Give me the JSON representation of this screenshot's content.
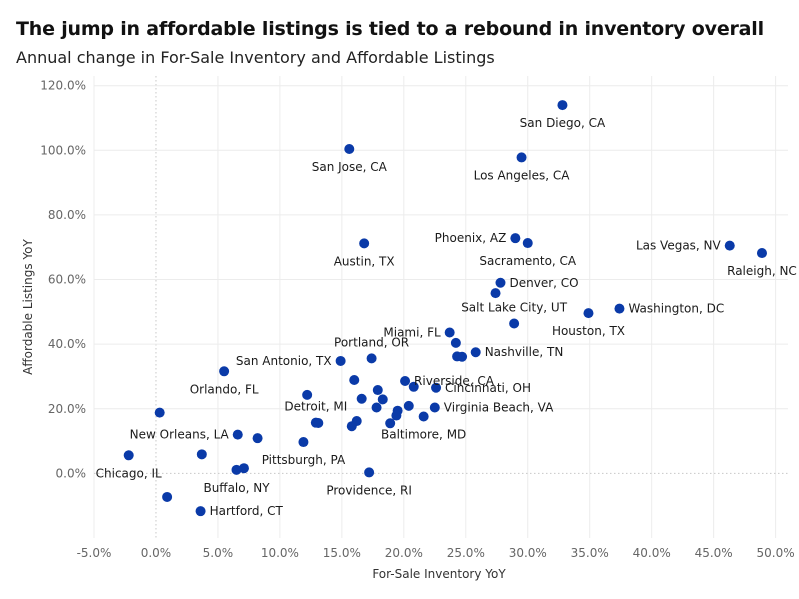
{
  "chart_data": {
    "type": "scatter",
    "title": "The jump in affordable listings is tied to a rebound in inventory overall",
    "subtitle": "Annual change in For-Sale Inventory and Affordable Listings",
    "xlabel": "For-Sale Inventory YoY",
    "ylabel": "Affordable Listings YoY",
    "xlim": [
      -5,
      51
    ],
    "ylim": [
      -20,
      123
    ],
    "xticks": [
      -5,
      0,
      5,
      10,
      15,
      20,
      25,
      30,
      35,
      40,
      45,
      50
    ],
    "yticks": [
      0,
      20,
      40,
      60,
      80,
      100,
      120
    ],
    "grid": true,
    "point_color": "#0a3aa8",
    "points": [
      {
        "x": 32.8,
        "y": 114.0,
        "label": "San Diego, CA",
        "pos": "below"
      },
      {
        "x": 15.6,
        "y": 100.4,
        "label": "San Jose, CA",
        "pos": "below"
      },
      {
        "x": 29.5,
        "y": 97.8,
        "label": "Los Angeles, CA",
        "pos": "below"
      },
      {
        "x": 16.8,
        "y": 71.2,
        "label": "Austin, TX",
        "pos": "below"
      },
      {
        "x": 29.0,
        "y": 72.8,
        "label": "Phoenix, AZ",
        "pos": "left"
      },
      {
        "x": 30.0,
        "y": 71.3,
        "label": "Sacramento, CA",
        "pos": "below"
      },
      {
        "x": 46.3,
        "y": 70.5,
        "label": "Las Vegas, NV",
        "pos": "left"
      },
      {
        "x": 48.9,
        "y": 68.2,
        "label": "Raleigh, NC",
        "pos": "below"
      },
      {
        "x": 27.8,
        "y": 59.0,
        "label": "Denver, CO",
        "pos": "right"
      },
      {
        "x": 27.4,
        "y": 55.8,
        "label": "",
        "pos": "none"
      },
      {
        "x": 37.4,
        "y": 51.0,
        "label": "Washington, DC",
        "pos": "right"
      },
      {
        "x": 34.9,
        "y": 49.6,
        "label": "Houston, TX",
        "pos": "below"
      },
      {
        "x": 28.9,
        "y": 46.4,
        "label": "Salt Lake City, UT",
        "pos": "above"
      },
      {
        "x": 23.7,
        "y": 43.6,
        "label": "Miami, FL",
        "pos": "left"
      },
      {
        "x": 24.2,
        "y": 40.4,
        "label": "",
        "pos": "none"
      },
      {
        "x": 24.3,
        "y": 36.2,
        "label": "",
        "pos": "none"
      },
      {
        "x": 24.7,
        "y": 36.1,
        "label": "",
        "pos": "none"
      },
      {
        "x": 25.8,
        "y": 37.5,
        "label": "Nashville, TN",
        "pos": "right"
      },
      {
        "x": 17.4,
        "y": 35.6,
        "label": "Portland, OR",
        "pos": "above"
      },
      {
        "x": 14.9,
        "y": 34.8,
        "label": "San Antonio, TX",
        "pos": "left"
      },
      {
        "x": 5.5,
        "y": 31.6,
        "label": "Orlando, FL",
        "pos": "below"
      },
      {
        "x": 16.0,
        "y": 28.9,
        "label": "",
        "pos": "none"
      },
      {
        "x": 20.1,
        "y": 28.6,
        "label": "Riverside, CA",
        "pos": "right"
      },
      {
        "x": 20.8,
        "y": 26.8,
        "label": "",
        "pos": "none"
      },
      {
        "x": 22.6,
        "y": 26.5,
        "label": "Cincinnati, OH",
        "pos": "right"
      },
      {
        "x": 17.9,
        "y": 25.8,
        "label": "",
        "pos": "none"
      },
      {
        "x": 12.2,
        "y": 24.3,
        "label": "",
        "pos": "none"
      },
      {
        "x": 16.6,
        "y": 23.1,
        "label": "",
        "pos": "none"
      },
      {
        "x": 18.3,
        "y": 22.9,
        "label": "",
        "pos": "none"
      },
      {
        "x": 17.8,
        "y": 20.4,
        "label": "",
        "pos": "none"
      },
      {
        "x": 20.4,
        "y": 20.9,
        "label": "",
        "pos": "none"
      },
      {
        "x": 22.5,
        "y": 20.4,
        "label": "Virginia Beach, VA",
        "pos": "right"
      },
      {
        "x": 19.5,
        "y": 19.4,
        "label": "",
        "pos": "none"
      },
      {
        "x": 19.4,
        "y": 17.9,
        "label": "",
        "pos": "none"
      },
      {
        "x": 21.6,
        "y": 17.6,
        "label": "Baltimore, MD",
        "pos": "below"
      },
      {
        "x": 12.9,
        "y": 15.7,
        "label": "Detroit, MI",
        "pos": "above"
      },
      {
        "x": 13.1,
        "y": 15.6,
        "label": "",
        "pos": "none"
      },
      {
        "x": 16.2,
        "y": 16.2,
        "label": "",
        "pos": "none"
      },
      {
        "x": 15.8,
        "y": 14.6,
        "label": "",
        "pos": "none"
      },
      {
        "x": 18.9,
        "y": 15.5,
        "label": "",
        "pos": "none"
      },
      {
        "x": 0.3,
        "y": 18.8,
        "label": "",
        "pos": "none"
      },
      {
        "x": 6.6,
        "y": 12.0,
        "label": "New Orleans, LA",
        "pos": "left"
      },
      {
        "x": 8.2,
        "y": 10.9,
        "label": "",
        "pos": "none"
      },
      {
        "x": 11.9,
        "y": 9.7,
        "label": "Pittsburgh, PA",
        "pos": "below"
      },
      {
        "x": -2.2,
        "y": 5.6,
        "label": "Chicago, IL",
        "pos": "below"
      },
      {
        "x": 3.7,
        "y": 5.9,
        "label": "",
        "pos": "none"
      },
      {
        "x": 6.5,
        "y": 1.1,
        "label": "Buffalo, NY",
        "pos": "below"
      },
      {
        "x": 7.1,
        "y": 1.6,
        "label": "",
        "pos": "none"
      },
      {
        "x": 17.2,
        "y": 0.3,
        "label": "Providence, RI",
        "pos": "below"
      },
      {
        "x": 0.9,
        "y": -7.3,
        "label": "",
        "pos": "none"
      },
      {
        "x": 3.6,
        "y": -11.7,
        "label": "Hartford, CT",
        "pos": "right"
      }
    ]
  }
}
